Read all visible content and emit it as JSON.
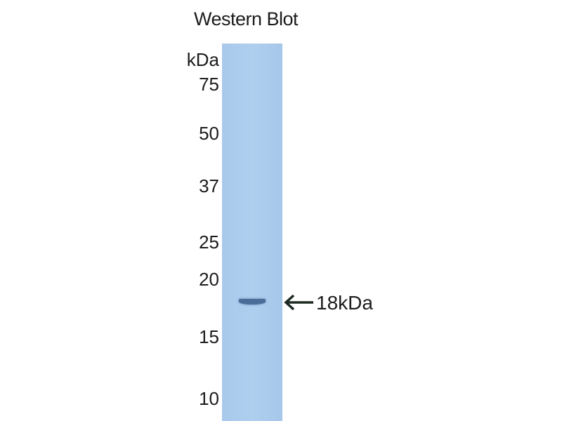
{
  "title": "Western Blot",
  "unit_label": "kDa",
  "markers": [
    "75",
    "50",
    "37",
    "25",
    "20",
    "15",
    "10"
  ],
  "band_label": "18kDa",
  "colors": {
    "lane": "#afcfef",
    "band": "#4a6d98"
  }
}
